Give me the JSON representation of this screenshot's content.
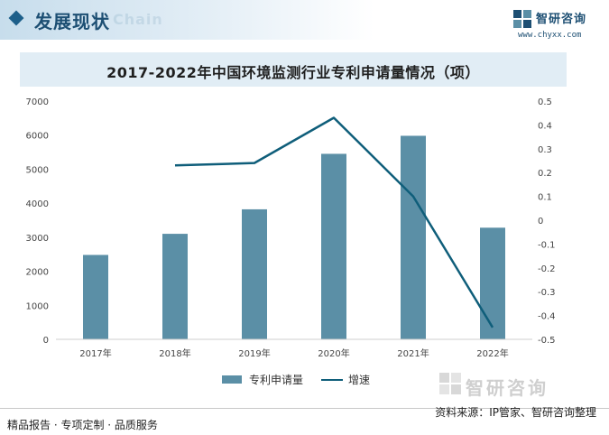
{
  "header": {
    "title": "发展现状",
    "ghost_text": "Chain"
  },
  "logo": {
    "name": "智研咨询",
    "url": "www.chyxx.com"
  },
  "chart_data": {
    "type": "bar",
    "title": "2017-2022年中国环境监测行业专利申请量情况（项）",
    "categories": [
      "2017年",
      "2018年",
      "2019年",
      "2020年",
      "2021年",
      "2022年"
    ],
    "series": [
      {
        "name": "专利申请量",
        "type": "bar",
        "axis": "left",
        "values": [
          2480,
          3100,
          3820,
          5450,
          5980,
          3280
        ],
        "color": "#5b8fa6"
      },
      {
        "name": "增速",
        "type": "line",
        "axis": "right",
        "values": [
          null,
          0.23,
          0.24,
          0.43,
          0.1,
          -0.45
        ],
        "color": "#0f5e7a"
      }
    ],
    "y_left": {
      "range": [
        0,
        7000
      ],
      "ticks": [
        0,
        1000,
        2000,
        3000,
        4000,
        5000,
        6000,
        7000
      ]
    },
    "y_right": {
      "range": [
        -0.5,
        0.5
      ],
      "ticks": [
        -0.5,
        -0.4,
        -0.3,
        -0.2,
        -0.1,
        0,
        0.1,
        0.2,
        0.3,
        0.4,
        0.5
      ],
      "tick_labels": [
        "-0.5",
        "-0.4",
        "-0.3",
        "-0.2",
        "-0.1",
        "0",
        "0.1",
        "0.2",
        "0.3",
        "0.4",
        "0.5"
      ]
    },
    "grid": false,
    "legend": "bottom"
  },
  "bottom_logo": {
    "text": "智研咨询"
  },
  "footer": {
    "left": "精品报告 · 专项定制 · 品质服务",
    "source": "资料来源：IP管家、智研咨询整理"
  }
}
